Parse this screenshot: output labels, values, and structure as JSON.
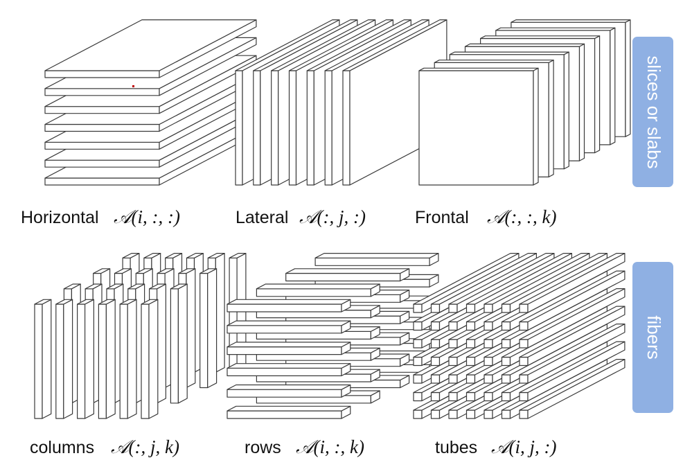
{
  "captions": {
    "horizontal": {
      "word": "Horizontal",
      "math": "𝒜(i, :, :)"
    },
    "lateral": {
      "word": "Lateral",
      "math": "𝒜(:, j, :)"
    },
    "frontal": {
      "word": "Frontal",
      "math": "𝒜(:, :, k)"
    },
    "columns": {
      "word": "columns",
      "math": "𝒜(:, j, k)"
    },
    "rows": {
      "word": "rows",
      "math": "𝒜(i, :, k)"
    },
    "tubes": {
      "word": "tubes",
      "math": "𝒜(i, j, :)"
    }
  },
  "side_labels": {
    "slices": "slices or slabs",
    "fibers": "fibers"
  },
  "colors": {
    "label_box": "#8fb0e3",
    "outline": "#3a3a3a",
    "marker": "#c00000"
  }
}
